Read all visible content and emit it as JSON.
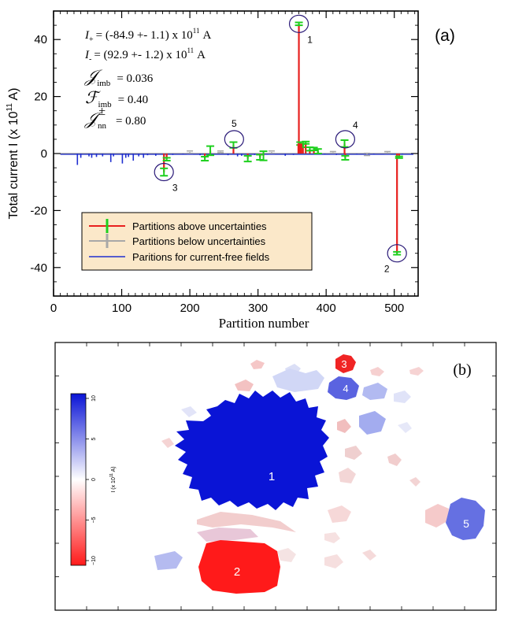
{
  "panel_a": {
    "label": "(a)",
    "annotations": [
      {
        "lhs": "I",
        "sub": "+",
        "rhs": "= (-84.9 +- 1.1) x 10",
        "exp": "11",
        "unit": "A"
      },
      {
        "lhs": "I",
        "sub": "-",
        "rhs": "= (92.9 +- 1.2) x 10",
        "exp": "11",
        "unit": "A"
      },
      {
        "lhs": "𝒥",
        "sub": "imb",
        "rhs": "= 0.036"
      },
      {
        "lhs": "ℱ",
        "sub": "imb",
        "rhs": "= 0.40"
      },
      {
        "lhs": "𝒥",
        "sub": "nn",
        "sup": "±",
        "rhs": "= 0.80"
      }
    ],
    "legend": [
      {
        "label": "Partitions above uncertainties",
        "color": "#e8201e"
      },
      {
        "label": "Partitions below uncertainties",
        "color": "#a8a8a8"
      },
      {
        "label": "Paritions for current-free fields",
        "color": "#1f2fd0"
      }
    ],
    "legend_bg": "#fbe8c9"
  },
  "chart_data": {
    "type": "bar",
    "title": "",
    "xlabel": "Partition number",
    "ylabel": "Total current I (x 10",
    "ylabel_exp": "11",
    "ylabel_unit": " A)",
    "xlim": [
      0,
      535
    ],
    "ylim": [
      -50,
      50
    ],
    "xticks": [
      0,
      100,
      200,
      300,
      400,
      500
    ],
    "yticks": [
      -40,
      -20,
      0,
      20,
      40
    ],
    "series": [
      {
        "name": "Partitions above uncertainties",
        "color": "#e8201e",
        "err_color": "#1ed01e",
        "points": [
          {
            "x": 162,
            "y": -6.5,
            "err": 1.3
          },
          {
            "x": 166,
            "y": -2.0,
            "err": 0.5
          },
          {
            "x": 222,
            "y": -1.8,
            "err": 0.7
          },
          {
            "x": 230,
            "y": 1.0,
            "err": 1.6
          },
          {
            "x": 264,
            "y": 3.0,
            "err": 1.0
          },
          {
            "x": 285,
            "y": -1.8,
            "err": 1.0
          },
          {
            "x": 303,
            "y": -1.3,
            "err": 0.9
          },
          {
            "x": 308,
            "y": -0.8,
            "err": 1.6
          },
          {
            "x": 360,
            "y": 45.5,
            "err": 0.5
          },
          {
            "x": 362,
            "y": 3.5,
            "err": 0.5
          },
          {
            "x": 366,
            "y": 2.8,
            "err": 0.6
          },
          {
            "x": 370,
            "y": 3.8,
            "err": 0.4
          },
          {
            "x": 376,
            "y": 1.6,
            "err": 0.6
          },
          {
            "x": 382,
            "y": 1.6,
            "err": 0.5
          },
          {
            "x": 388,
            "y": 0.8,
            "err": 0.8
          },
          {
            "x": 427,
            "y": 3.5,
            "err": 1.2
          },
          {
            "x": 428,
            "y": -1.5,
            "err": 0.7
          },
          {
            "x": 504,
            "y": -35.0,
            "err": 0.5
          },
          {
            "x": 507,
            "y": -1.3,
            "err": 0.3
          }
        ]
      },
      {
        "name": "Partitions below uncertainties",
        "color": "#a8a8a8",
        "err_color": "#1ed01e",
        "points": [
          {
            "x": 200,
            "y": 0.5,
            "err": 0.4
          },
          {
            "x": 245,
            "y": 0.6,
            "err": 0.3
          },
          {
            "x": 320,
            "y": 0.5,
            "err": 0.4
          },
          {
            "x": 410,
            "y": 0.4,
            "err": 0.3
          },
          {
            "x": 460,
            "y": -0.3,
            "err": 0.4
          },
          {
            "x": 490,
            "y": 0.4,
            "err": 0.3
          }
        ]
      },
      {
        "name": "Paritions for current-free fields",
        "color": "#1f2fd0",
        "points": [
          {
            "x": 35,
            "y": -4.0
          },
          {
            "x": 40,
            "y": -1.5
          },
          {
            "x": 52,
            "y": -1.0
          },
          {
            "x": 56,
            "y": -1.5
          },
          {
            "x": 63,
            "y": -1.2
          },
          {
            "x": 72,
            "y": -1.0
          },
          {
            "x": 84,
            "y": -3.0
          },
          {
            "x": 88,
            "y": -1.0
          },
          {
            "x": 101,
            "y": -3.5
          },
          {
            "x": 106,
            "y": -1.5
          },
          {
            "x": 110,
            "y": -1.2
          },
          {
            "x": 117,
            "y": -2.5
          },
          {
            "x": 125,
            "y": -1.0
          },
          {
            "x": 132,
            "y": -1.5
          },
          {
            "x": 138,
            "y": -0.6
          },
          {
            "x": 150,
            "y": -0.8
          },
          {
            "x": 175,
            "y": -0.5
          },
          {
            "x": 190,
            "y": -0.4
          },
          {
            "x": 215,
            "y": -0.6
          },
          {
            "x": 256,
            "y": -0.6
          },
          {
            "x": 270,
            "y": -1.0
          },
          {
            "x": 276,
            "y": -0.8
          },
          {
            "x": 295,
            "y": -0.5
          },
          {
            "x": 340,
            "y": -0.8
          },
          {
            "x": 352,
            "y": -0.5
          },
          {
            "x": 398,
            "y": -0.4
          },
          {
            "x": 415,
            "y": -0.5
          },
          {
            "x": 445,
            "y": -0.4
          },
          {
            "x": 470,
            "y": -0.3
          },
          {
            "x": 512,
            "y": -0.4
          }
        ]
      }
    ],
    "circled": [
      {
        "label": "1",
        "x": 360,
        "y": 45.5,
        "label_pos": "below-right"
      },
      {
        "label": "2",
        "x": 504,
        "y": -35.0,
        "label_pos": "below-left"
      },
      {
        "label": "3",
        "x": 162,
        "y": -6.5,
        "label_pos": "below-right"
      },
      {
        "label": "4",
        "x": 428,
        "y": 5.0,
        "label_pos": "above-right"
      },
      {
        "label": "5",
        "x": 265,
        "y": 5.0,
        "label_pos": "above"
      }
    ]
  },
  "panel_b": {
    "label": "(b)",
    "colorbar": {
      "label": "I (x 10",
      "label_exp": "11",
      "label_unit": " A)",
      "ticks": [
        "10",
        "5",
        "0",
        "−5",
        "−10"
      ],
      "top_color": "#0a14d6",
      "mid_color": "#ffffff",
      "bottom_color": "#ff1a1a"
    },
    "regions": [
      {
        "label": "1",
        "value": 10.0
      },
      {
        "label": "2",
        "value": -9.0
      },
      {
        "label": "3",
        "value": -8.0
      },
      {
        "label": "4",
        "value": 6.0
      },
      {
        "label": "5",
        "value": 5.5
      }
    ]
  }
}
